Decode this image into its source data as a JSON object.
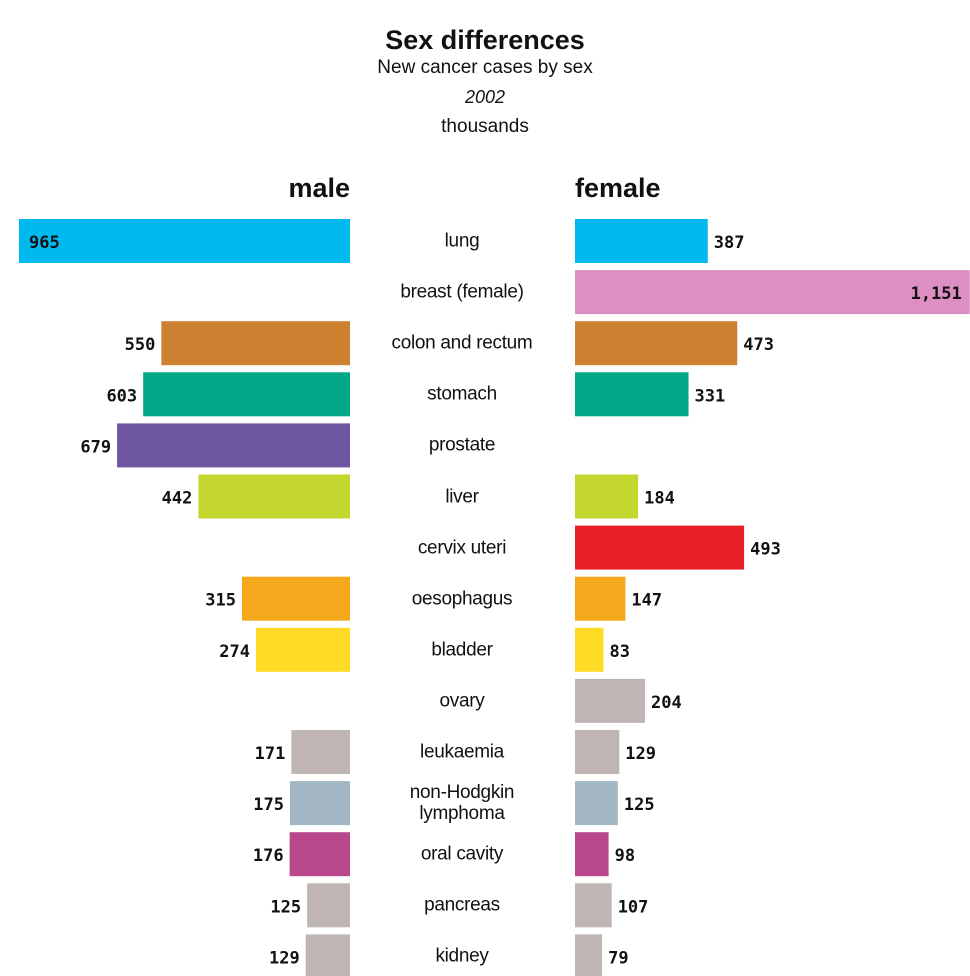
{
  "chart_data": {
    "type": "butterfly-bar",
    "title": "Sex differences",
    "subtitle": "New cancer cases by sex",
    "year": "2002",
    "unit": "thousands",
    "categories": [
      "lung",
      "breast (female)",
      "colon and rectum",
      "stomach",
      "prostate",
      "liver",
      "cervix uteri",
      "oesophagus",
      "bladder",
      "ovary",
      "leukaemia",
      "non-Hodgkin lymphoma",
      "oral cavity",
      "pancreas",
      "kidney"
    ],
    "colors": [
      "#00b9ee",
      "#dd8fc3",
      "#cc8030",
      "#00a887",
      "#6d55a0",
      "#c4d72e",
      "#e8202a",
      "#f5a81c",
      "#ffdb26",
      "#bfb6b3",
      "#bfb6b3",
      "#a3b6c4",
      "#b8488b",
      "#bfb6b3",
      "#bfb6b3"
    ],
    "series": [
      {
        "name": "male",
        "values": [
          965,
          null,
          550,
          603,
          679,
          442,
          null,
          315,
          274,
          null,
          171,
          175,
          176,
          125,
          129
        ]
      },
      {
        "name": "female",
        "values": [
          387,
          1151,
          473,
          331,
          null,
          184,
          493,
          147,
          83,
          204,
          129,
          125,
          98,
          107,
          79
        ],
        "value_labels": [
          "387",
          "1,151",
          "473",
          "331",
          null,
          "184",
          "493",
          "147",
          "83",
          "204",
          "129",
          "125",
          "98",
          "107",
          "79"
        ]
      }
    ]
  }
}
